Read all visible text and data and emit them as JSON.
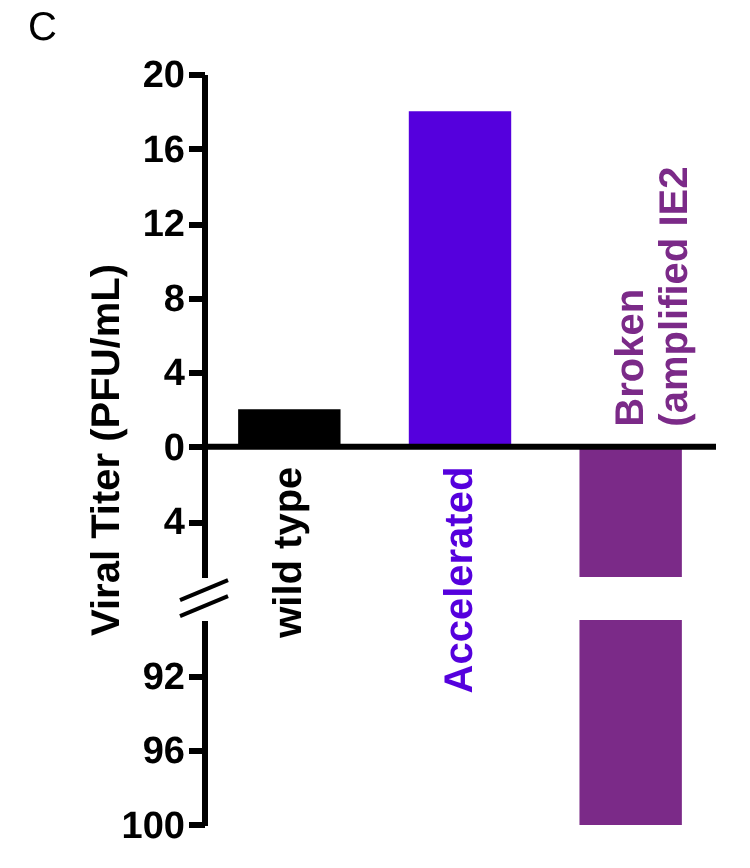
{
  "chart_data": [
    {
      "type": "bar",
      "annotations": [
        "C"
      ],
      "ylabel": "Viral Titer (PFU/mL)",
      "categories": [
        "wild type",
        "Accelerated",
        "Broken\n(amplified IE2"
      ],
      "values": [
        2,
        18,
        -7
      ],
      "colors": [
        "#000000",
        "#5500dd",
        "#7b2a88"
      ],
      "ylim": [
        -7,
        20
      ],
      "yticks": [
        20,
        16,
        12,
        8,
        4,
        0,
        {
          "value": -4,
          "label": "4"
        }
      ]
    },
    {
      "type": "bar",
      "categories": [
        null,
        null,
        null
      ],
      "values": [
        null,
        null,
        -11
      ],
      "base": [
        null,
        null,
        -89
      ],
      "colors": [
        "#000000",
        "#5500dd",
        "#7b2a88"
      ],
      "ylim": [
        -100,
        -89
      ],
      "yticks": [
        {
          "value": -92,
          "label": "92"
        },
        {
          "value": -96,
          "label": "96"
        },
        {
          "value": -100,
          "label": "100"
        }
      ],
      "tick_labels": "y"
    }
  ]
}
